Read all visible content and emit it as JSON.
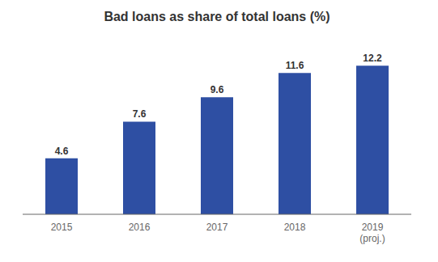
{
  "chart_data": {
    "type": "bar",
    "title": "Bad loans as share of total loans (%)",
    "categories": [
      "2015",
      "2016",
      "2017",
      "2018",
      "2019\n(proj.)"
    ],
    "values": [
      4.6,
      7.6,
      9.6,
      11.6,
      12.2
    ],
    "color": "#2e4fa3",
    "ylim": [
      0,
      14
    ],
    "yticks": [
      0,
      2.3333333333333335,
      4.666666666666667,
      7,
      9.333333333333334,
      11.666666666666668,
      14
    ],
    "grid": true,
    "data_labels": true,
    "tick_labels": "x"
  }
}
